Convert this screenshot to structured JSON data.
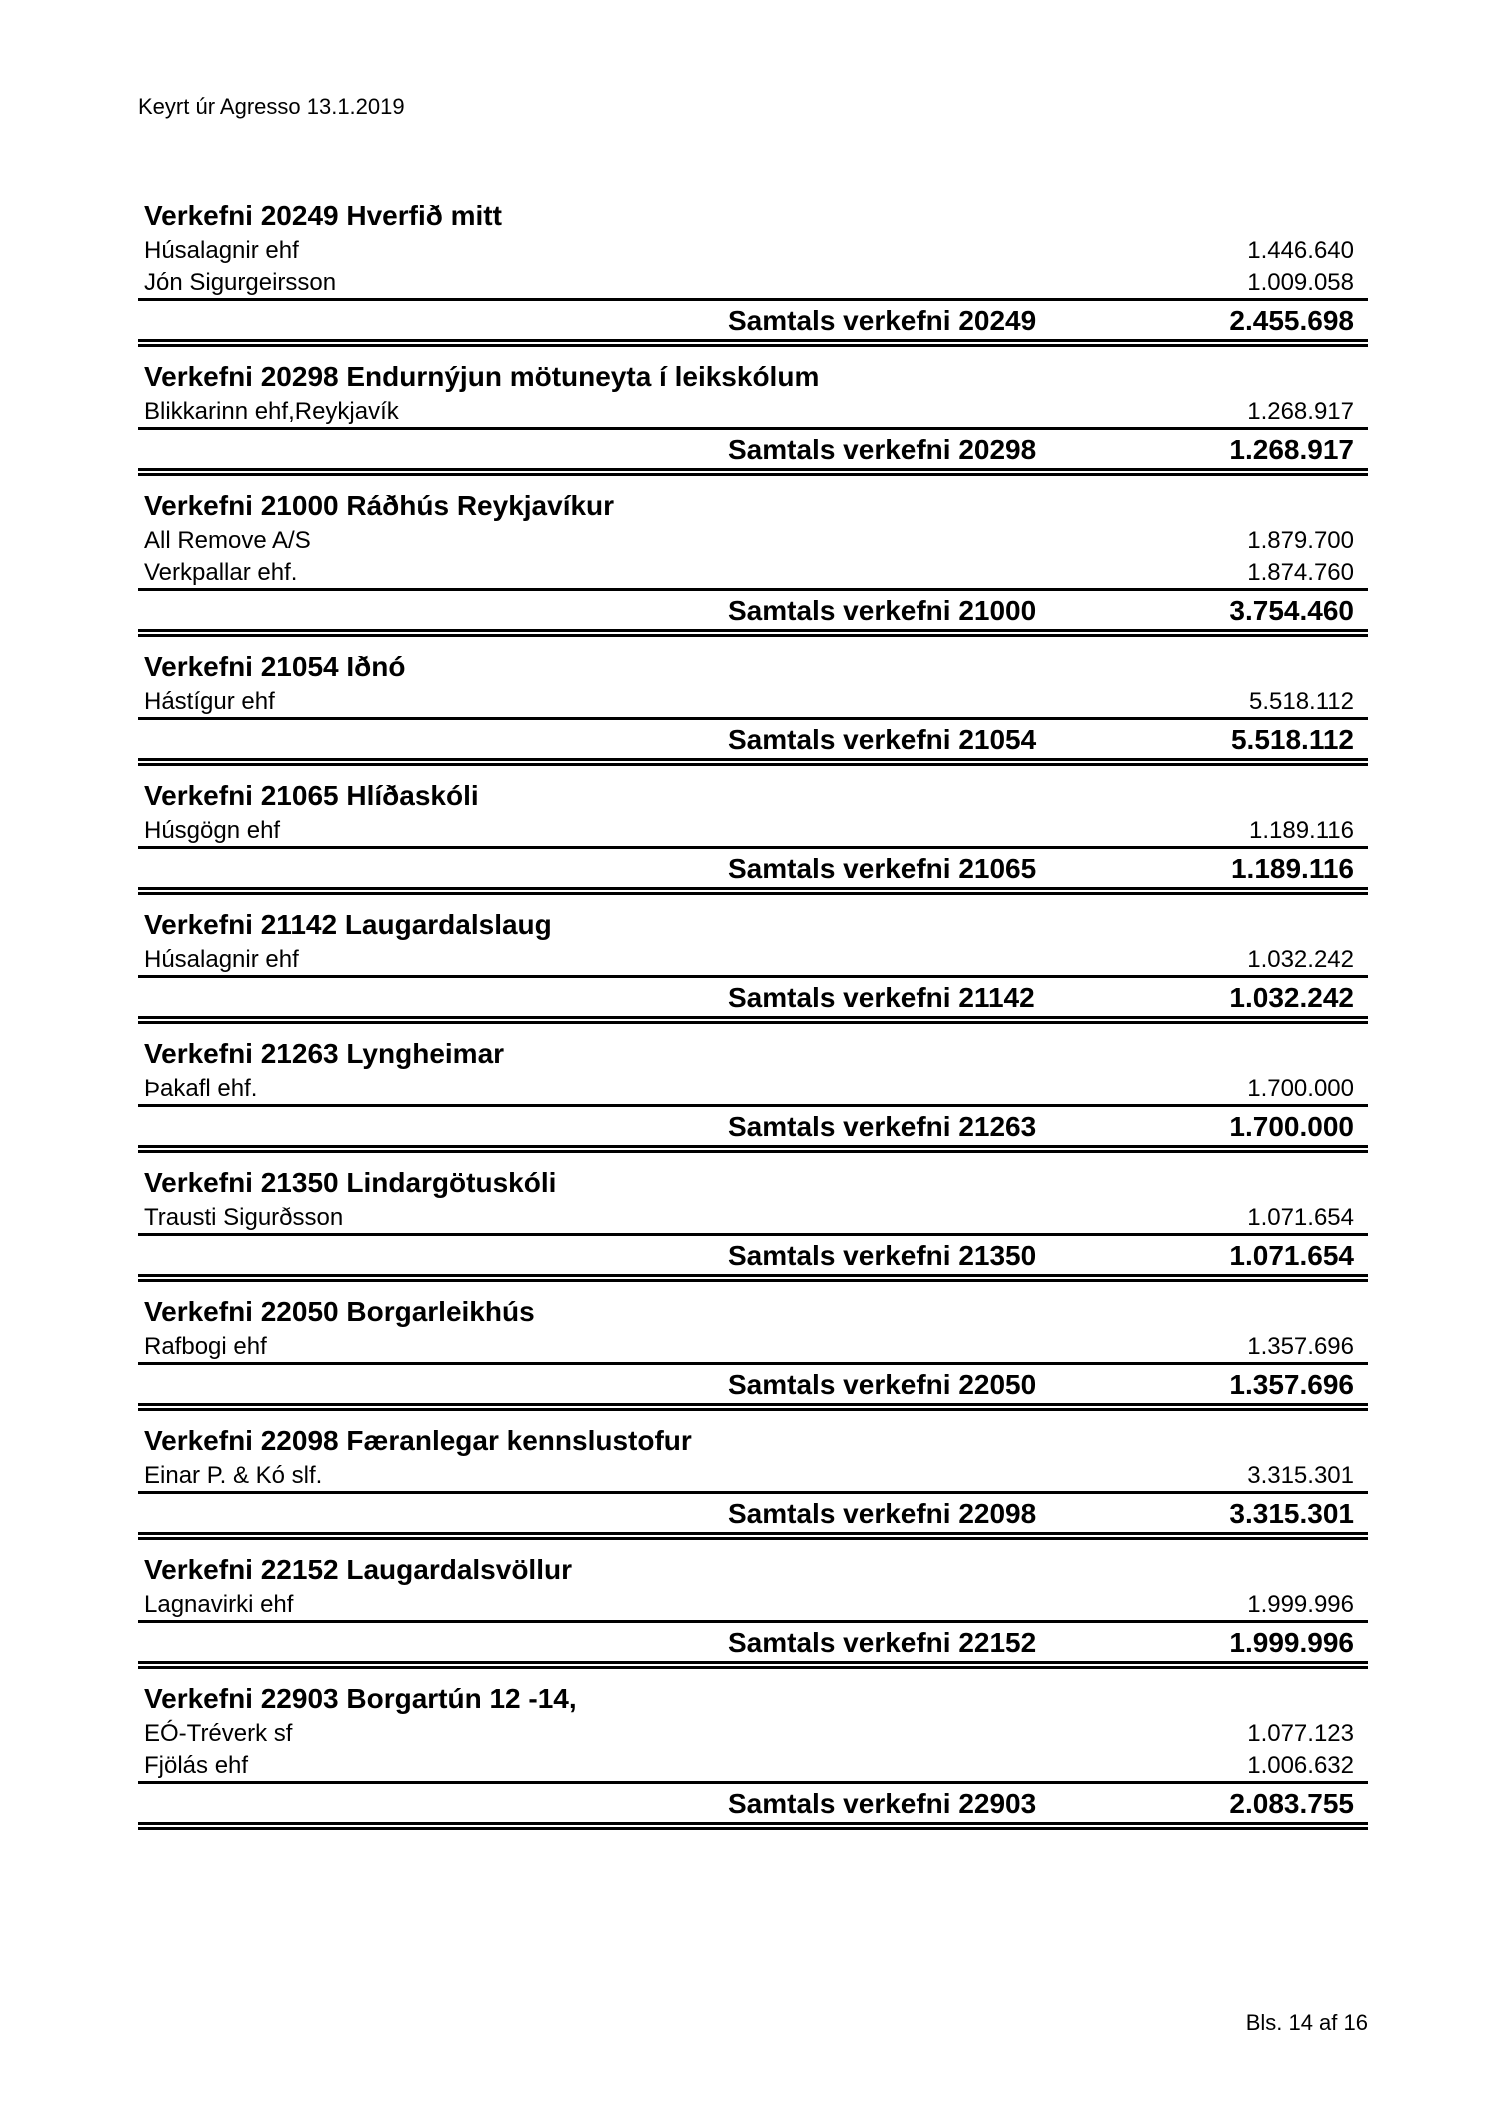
{
  "header": "Keyrt úr Agresso 13.1.2019",
  "footer": "Bls. 14 af 16",
  "sections": [
    {
      "title": "Verkefni 20249 Hverfið mitt",
      "items": [
        {
          "name": "Húsalagnir ehf",
          "amount": "1.446.640"
        },
        {
          "name": "Jón Sigurgeirsson",
          "amount": "1.009.058"
        }
      ],
      "total_label": "Samtals verkefni 20249",
      "total": "2.455.698"
    },
    {
      "title": "Verkefni 20298 Endurnýjun mötuneyta í leikskólum",
      "items": [
        {
          "name": "Blikkarinn ehf,Reykjavík",
          "amount": "1.268.917"
        }
      ],
      "total_label": "Samtals verkefni 20298",
      "total": "1.268.917"
    },
    {
      "title": "Verkefni 21000 Ráðhús Reykjavíkur",
      "items": [
        {
          "name": "All Remove A/S",
          "amount": "1.879.700"
        },
        {
          "name": "Verkpallar ehf.",
          "amount": "1.874.760"
        }
      ],
      "total_label": "Samtals verkefni 21000",
      "total": "3.754.460"
    },
    {
      "title": "Verkefni 21054 Iðnó",
      "items": [
        {
          "name": "Hástígur ehf",
          "amount": "5.518.112"
        }
      ],
      "total_label": "Samtals verkefni 21054",
      "total": "5.518.112"
    },
    {
      "title": "Verkefni 21065 Hlíðaskóli",
      "items": [
        {
          "name": "Húsgögn ehf",
          "amount": "1.189.116"
        }
      ],
      "total_label": "Samtals verkefni 21065",
      "total": "1.189.116"
    },
    {
      "title": "Verkefni 21142 Laugardalslaug",
      "items": [
        {
          "name": "Húsalagnir ehf",
          "amount": "1.032.242"
        }
      ],
      "total_label": "Samtals verkefni 21142",
      "total": "1.032.242"
    },
    {
      "title": "Verkefni 21263 Lyngheimar",
      "items": [
        {
          "name": "Þakafl ehf.",
          "amount": "1.700.000"
        }
      ],
      "total_label": "Samtals verkefni 21263",
      "total": "1.700.000"
    },
    {
      "title": "Verkefni 21350 Lindargötuskóli",
      "items": [
        {
          "name": "Trausti Sigurðsson",
          "amount": "1.071.654"
        }
      ],
      "total_label": "Samtals verkefni 21350",
      "total": "1.071.654"
    },
    {
      "title": "Verkefni 22050 Borgarleikhús",
      "items": [
        {
          "name": "Rafbogi ehf",
          "amount": "1.357.696"
        }
      ],
      "total_label": "Samtals verkefni 22050",
      "total": "1.357.696"
    },
    {
      "title": "Verkefni 22098 Færanlegar kennslustofur",
      "items": [
        {
          "name": "Einar P. & Kó slf.",
          "amount": "3.315.301"
        }
      ],
      "total_label": "Samtals verkefni 22098",
      "total": "3.315.301"
    },
    {
      "title": "Verkefni 22152 Laugardalsvöllur",
      "items": [
        {
          "name": "Lagnavirki ehf",
          "amount": "1.999.996"
        }
      ],
      "total_label": "Samtals verkefni 22152",
      "total": "1.999.996"
    },
    {
      "title": "Verkefni 22903 Borgartún 12 -14,",
      "items": [
        {
          "name": "EÓ-Tréverk sf",
          "amount": "1.077.123"
        },
        {
          "name": "Fjölás ehf",
          "amount": "1.006.632"
        }
      ],
      "total_label": "Samtals verkefni 22903",
      "total": "2.083.755"
    }
  ]
}
